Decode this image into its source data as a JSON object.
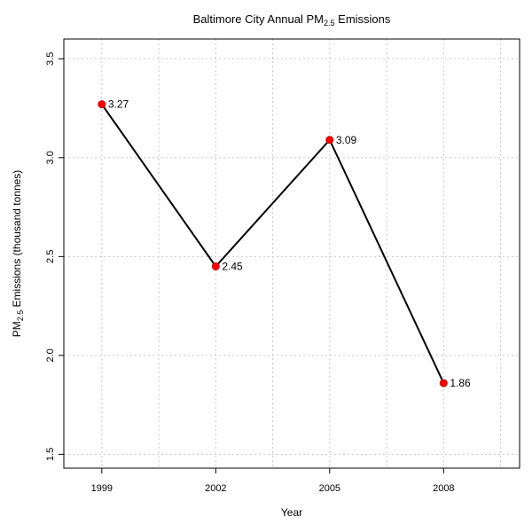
{
  "chart_data": {
    "type": "line",
    "title": {
      "prefix": "Baltimore City Annual PM",
      "subscript": "2.5",
      "suffix": " Emissions"
    },
    "xlabel": "Year",
    "ylabel": {
      "prefix": "PM",
      "subscript": "2.5",
      "suffix": " Emissions (thousand tonnes)"
    },
    "x": [
      "1999",
      "2002",
      "2005",
      "2008"
    ],
    "series": [
      {
        "values": [
          3.27,
          2.45,
          3.09,
          1.86
        ],
        "labels": [
          "3.27",
          "2.45",
          "3.09",
          "1.86"
        ]
      }
    ],
    "xlim": [
      1998,
      2010
    ],
    "ylim": [
      1.43,
      3.6
    ],
    "yticks": [
      "1.5",
      "2.0",
      "2.5",
      "3.0",
      "3.5"
    ],
    "grid": true,
    "colors": {
      "line": "#000000",
      "point": "#ff0000",
      "grid": "#c8c8c8"
    }
  }
}
